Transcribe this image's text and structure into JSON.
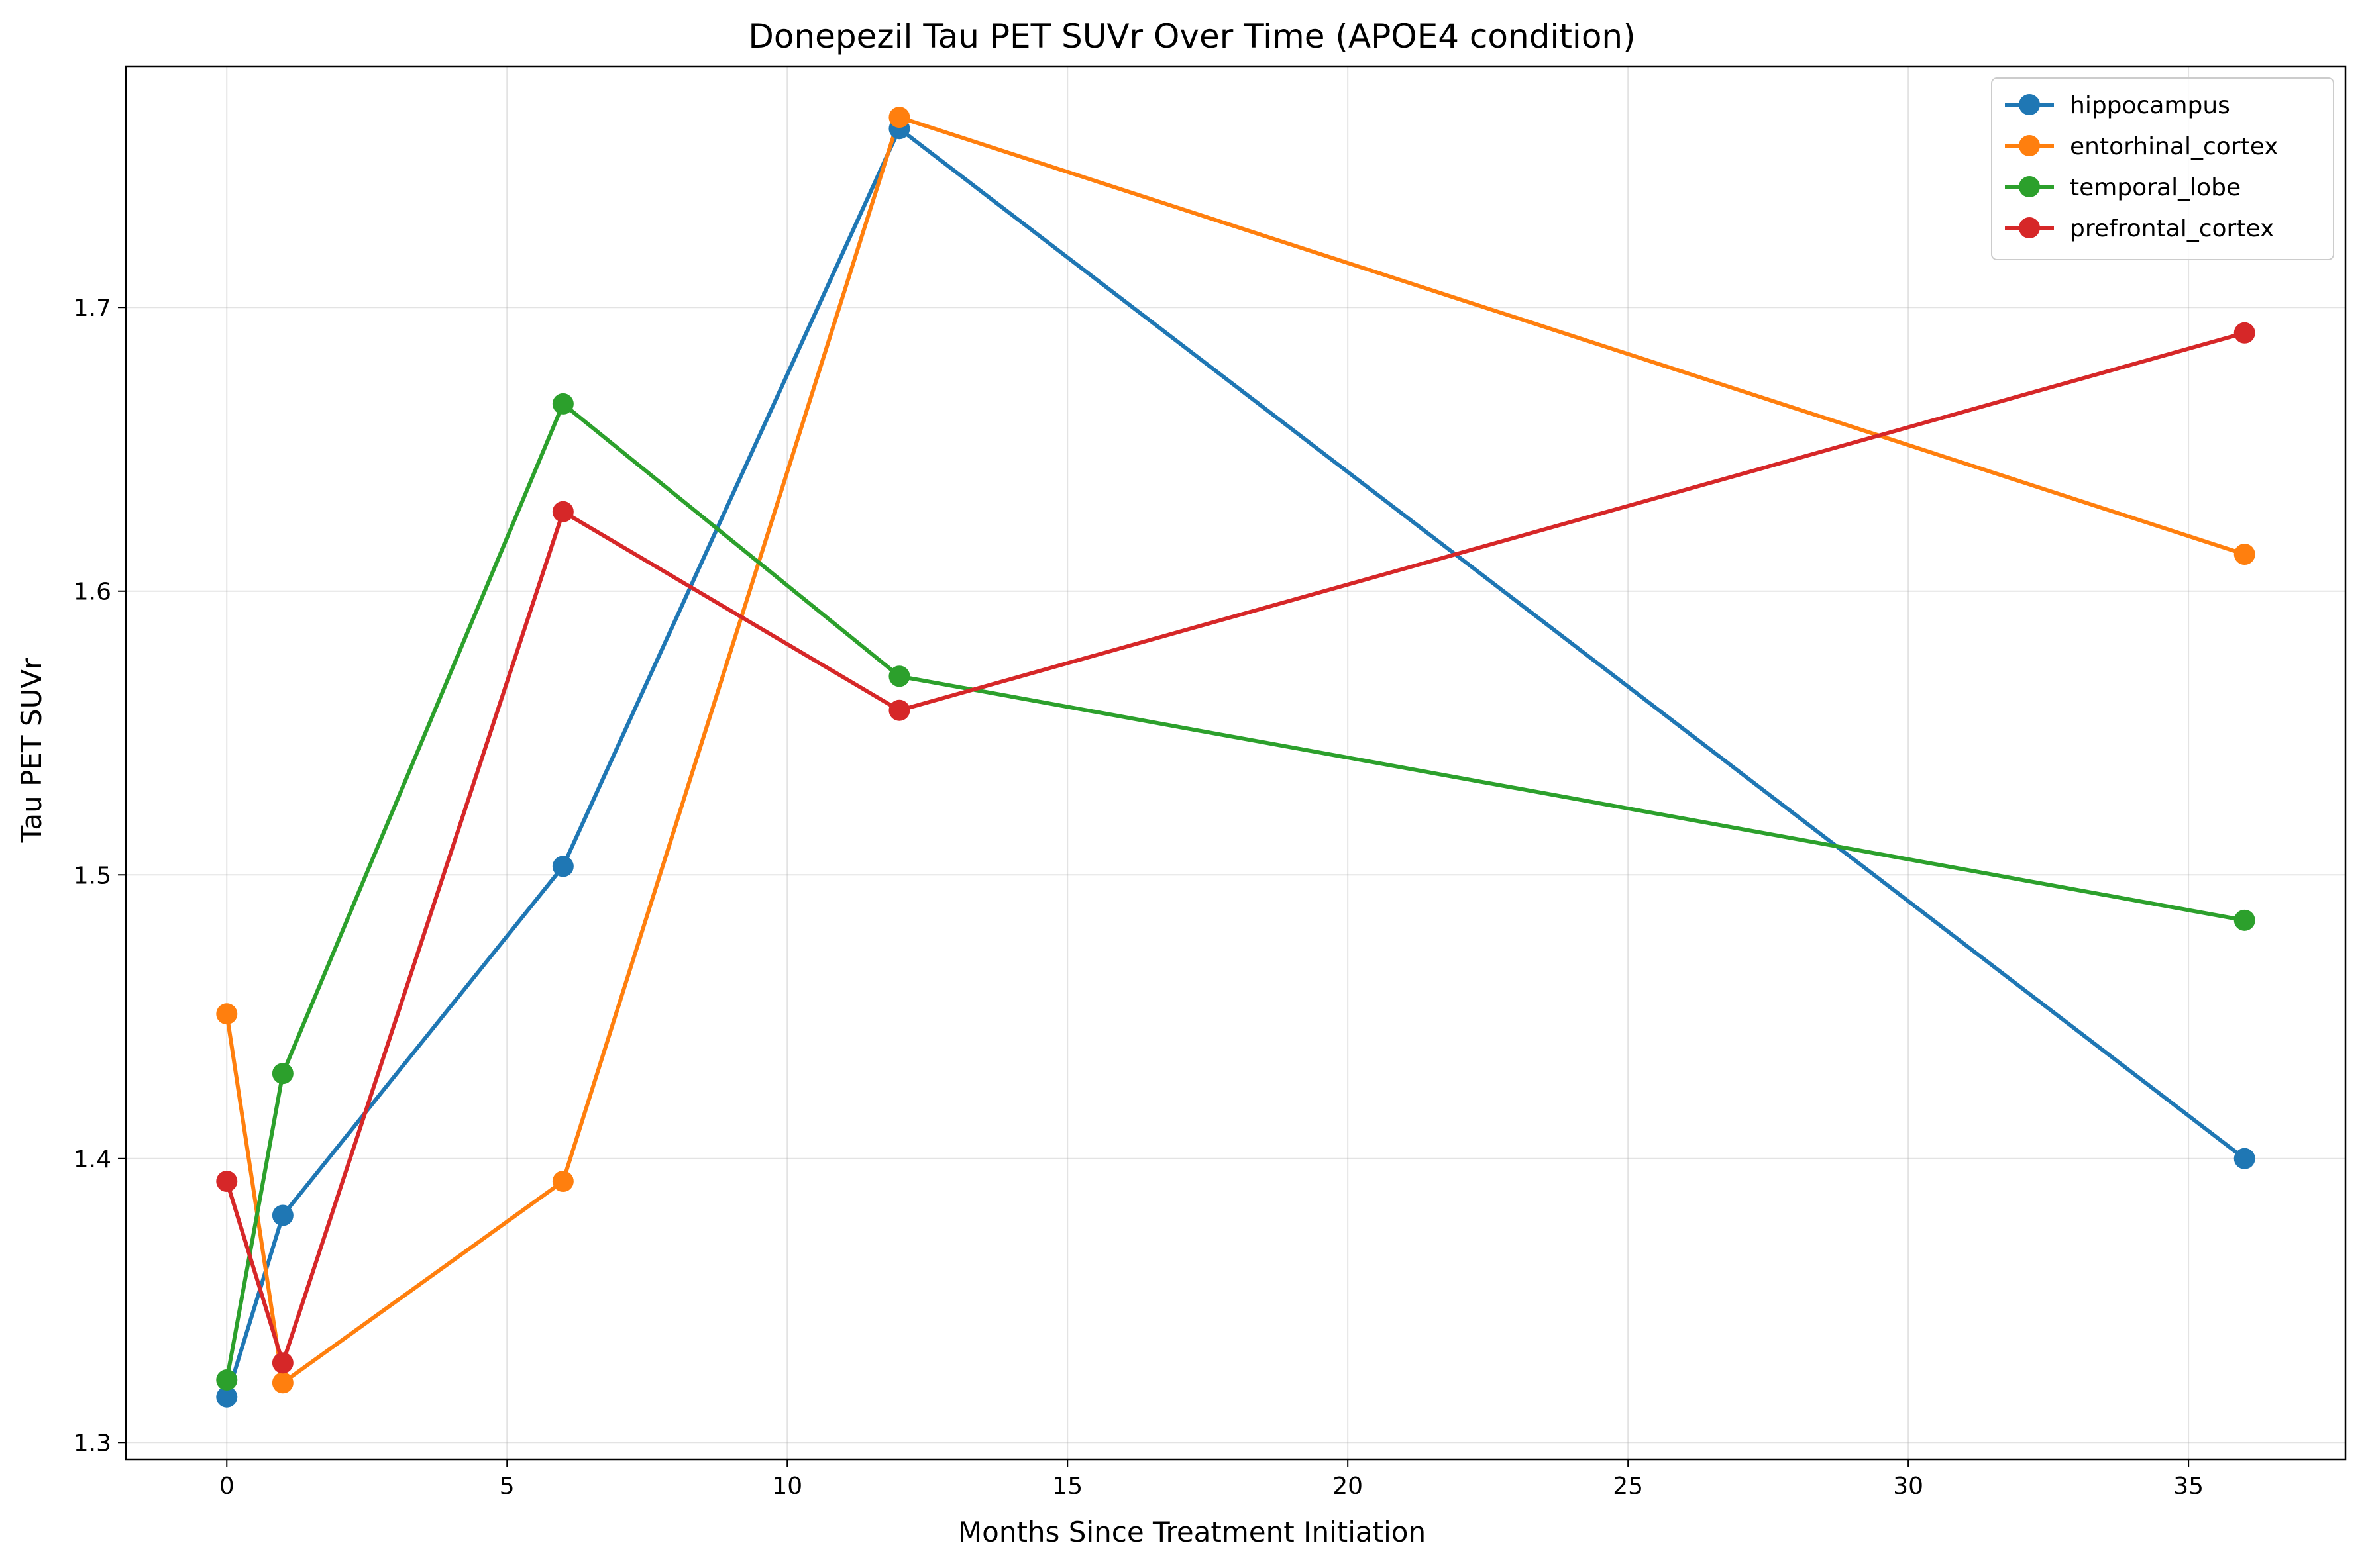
{
  "chart_data": {
    "type": "line",
    "title": "Donepezil Tau PET SUVr Over Time (APOE4 condition)",
    "xlabel": "Months Since Treatment Initiation",
    "ylabel": "Tau PET SUVr",
    "xlim": [
      -1.8,
      37.8
    ],
    "ylim": [
      1.294,
      1.785
    ],
    "xticks": [
      0,
      5,
      10,
      15,
      20,
      25,
      30,
      35
    ],
    "yticks": [
      1.3,
      1.4,
      1.5,
      1.6,
      1.7
    ],
    "grid": true,
    "legend_position": "top-right",
    "x": [
      0,
      1,
      6,
      12,
      36
    ],
    "series": [
      {
        "name": "hippocampus",
        "color": "#1f77b4",
        "values": [
          1.316,
          1.38,
          1.503,
          1.763,
          1.4
        ]
      },
      {
        "name": "entorhinal_cortex",
        "color": "#ff7f0e",
        "values": [
          1.451,
          1.321,
          1.392,
          1.767,
          1.613
        ]
      },
      {
        "name": "temporal_lobe",
        "color": "#2ca02c",
        "values": [
          1.322,
          1.43,
          1.666,
          1.57,
          1.484
        ]
      },
      {
        "name": "prefrontal_cortex",
        "color": "#d62728",
        "values": [
          1.392,
          1.328,
          1.628,
          1.558,
          1.691
        ]
      }
    ]
  }
}
